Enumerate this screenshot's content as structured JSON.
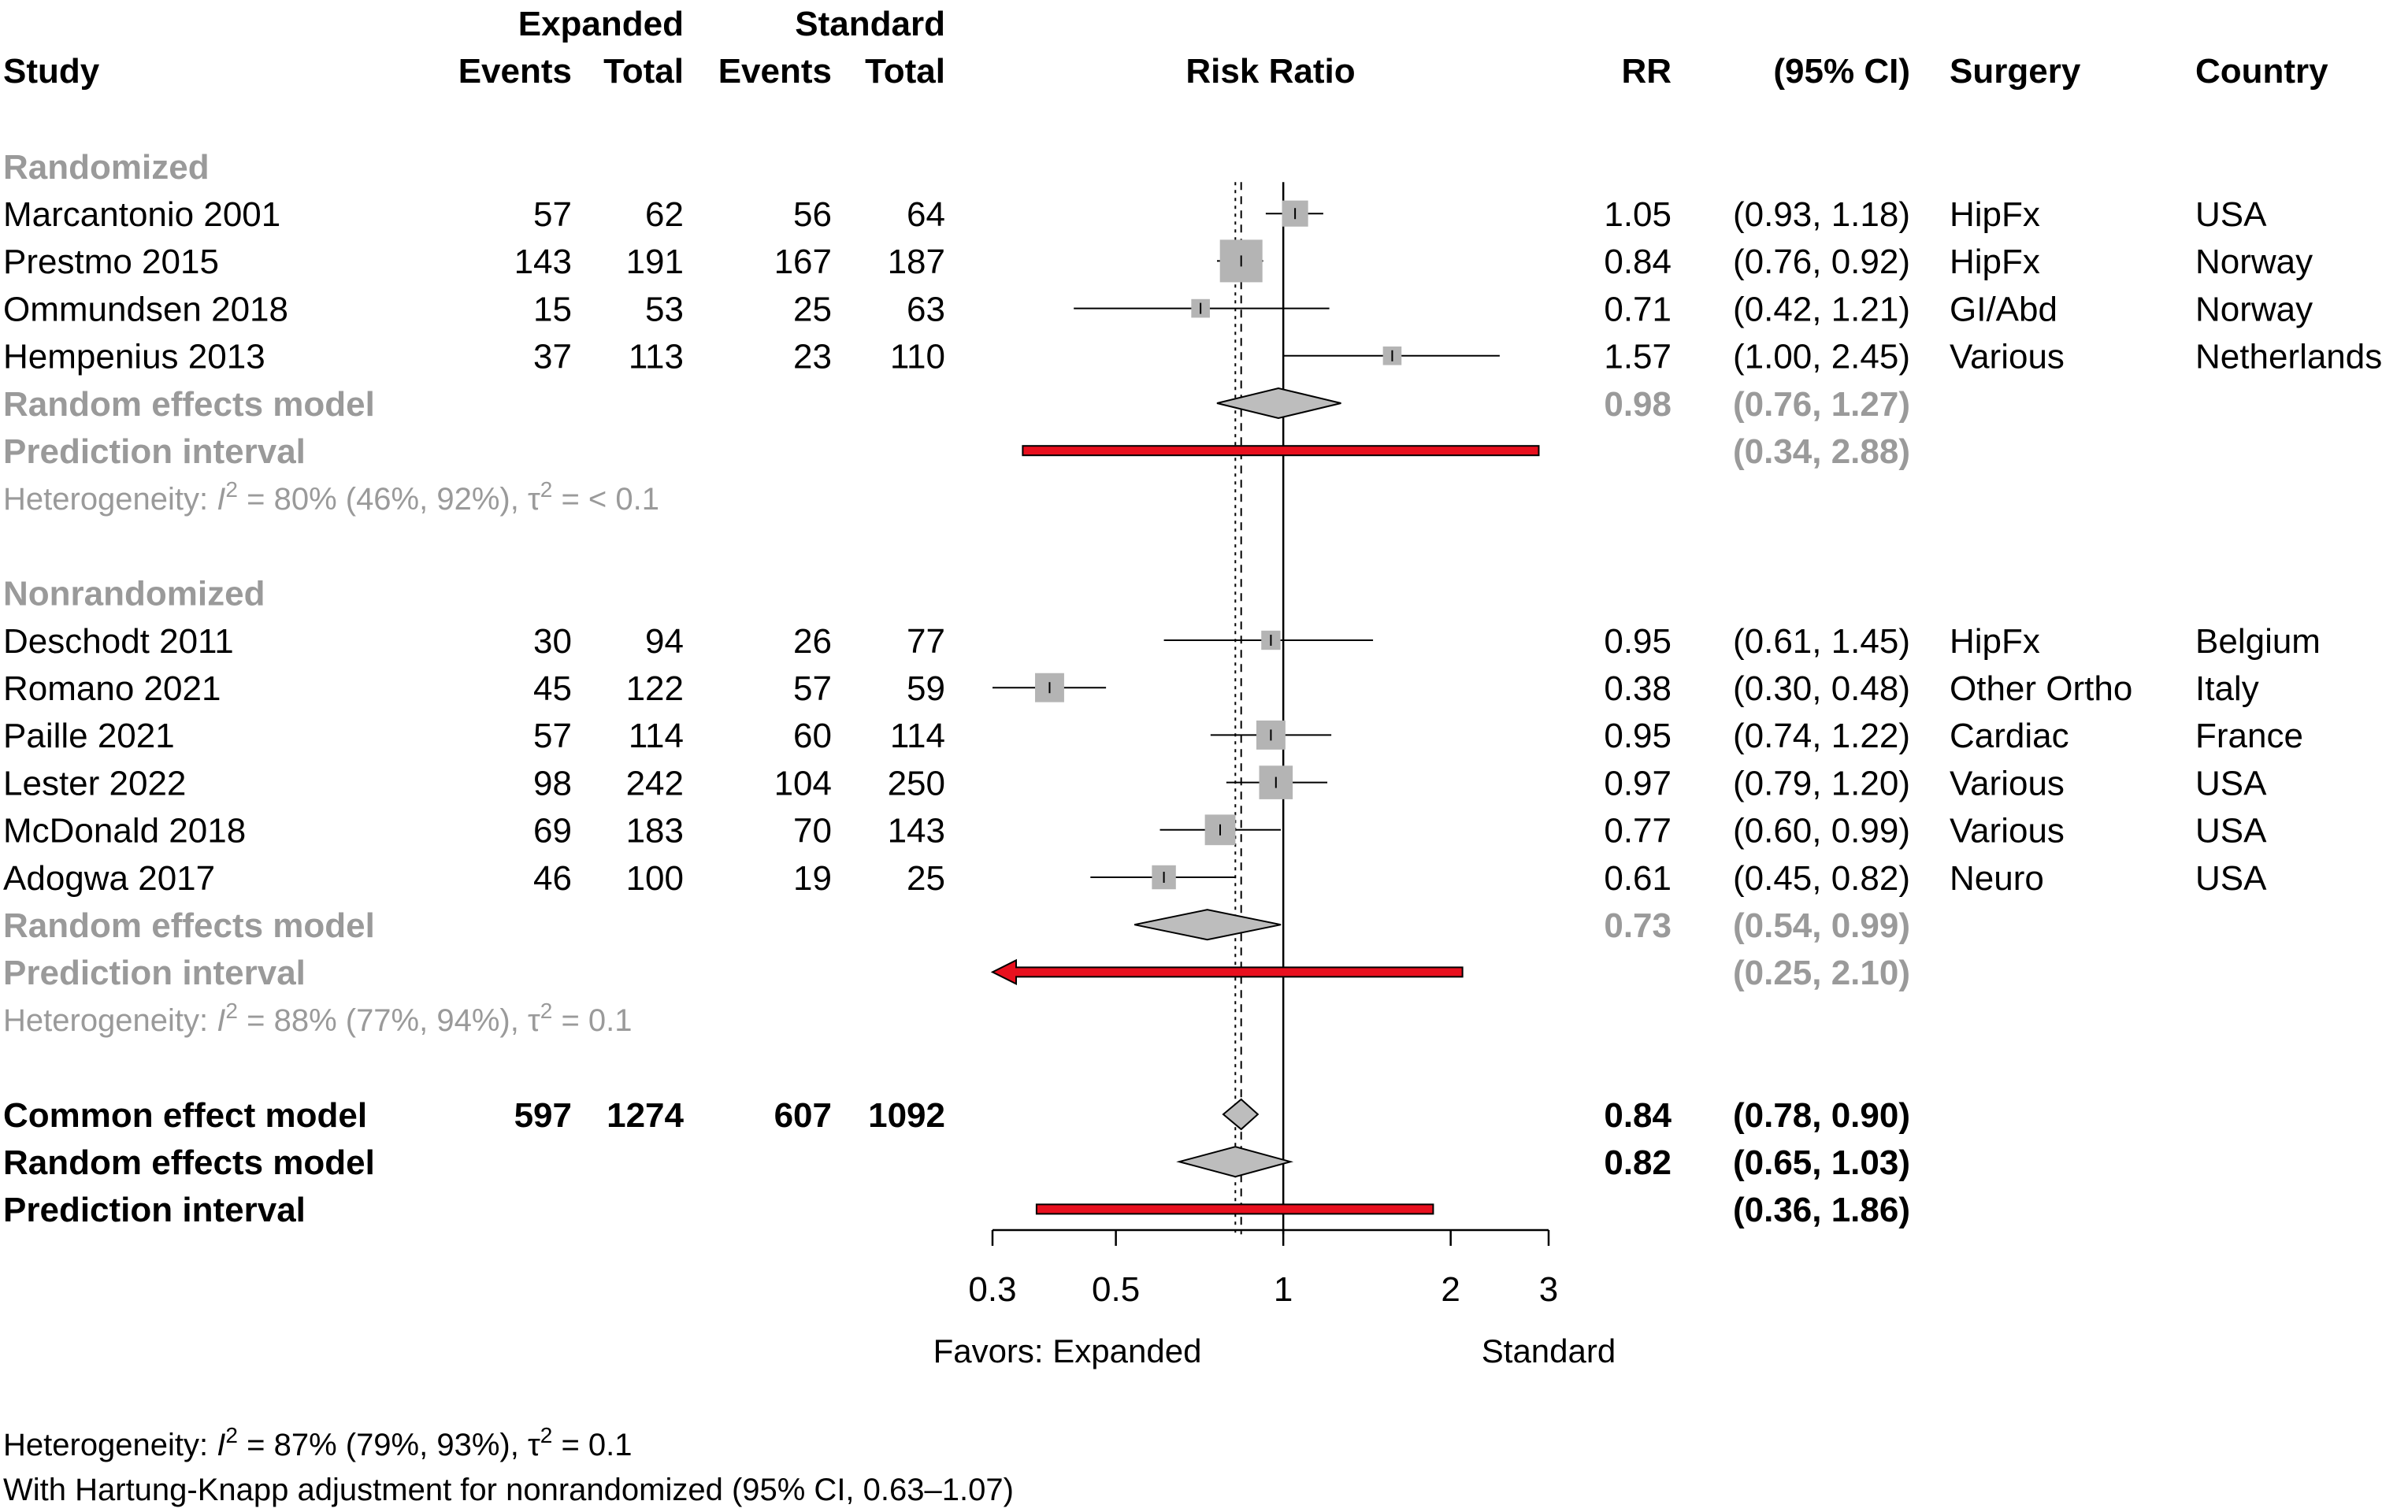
{
  "header": {
    "study": "Study",
    "expanded_group": "Expanded",
    "standard_group": "Standard",
    "events": "Events",
    "total": "Total",
    "risk_ratio": "Risk Ratio",
    "rr": "RR",
    "ci": "(95% CI)",
    "surgery": "Surgery",
    "country": "Country"
  },
  "chart_data": {
    "type": "forest",
    "xscale": "log",
    "xlim": [
      0.3,
      3
    ],
    "ticks": [
      0.3,
      0.5,
      1,
      2,
      3
    ],
    "tick_labels": [
      "0.3",
      "0.5",
      "1",
      "2",
      "3"
    ],
    "reference_line": 1,
    "common_effect_line": 0.84,
    "random_effect_line": 0.82,
    "favors_left": "Favors: Expanded",
    "favors_right": "Standard",
    "groups": [
      {
        "title": "Randomized",
        "studies": [
          {
            "study": "Marcantonio 2001",
            "e_events": "57",
            "e_total": "62",
            "s_events": "56",
            "s_total": "64",
            "rr": 1.05,
            "lo": 0.93,
            "hi": 1.18,
            "rr_text": "1.05",
            "ci_text": "(0.93, 1.18)",
            "surgery": "HipFx",
            "country": "USA",
            "weight": 0.45
          },
          {
            "study": "Prestmo 2015",
            "e_events": "143",
            "e_total": "191",
            "s_events": "167",
            "s_total": "187",
            "rr": 0.84,
            "lo": 0.76,
            "hi": 0.92,
            "rr_text": "0.84",
            "ci_text": "(0.76, 0.92)",
            "surgery": "HipFx",
            "country": "Norway",
            "weight": 1.0
          },
          {
            "study": "Ommundsen 2018",
            "e_events": "15",
            "e_total": "53",
            "s_events": "25",
            "s_total": "63",
            "rr": 0.71,
            "lo": 0.42,
            "hi": 1.21,
            "rr_text": "0.71",
            "ci_text": "(0.42, 1.21)",
            "surgery": "GI/Abd",
            "country": "Norway",
            "weight": 0.2
          },
          {
            "study": "Hempenius 2013",
            "e_events": "37",
            "e_total": "113",
            "s_events": "23",
            "s_total": "110",
            "rr": 1.57,
            "lo": 1.0,
            "hi": 2.45,
            "rr_text": "1.57",
            "ci_text": "(1.00, 2.45)",
            "surgery": "Various",
            "country": "Netherlands",
            "weight": 0.2
          }
        ],
        "random_effects": {
          "label": "Random effects model",
          "rr": 0.98,
          "lo": 0.76,
          "hi": 1.27,
          "rr_text": "0.98",
          "ci_text": "(0.76, 1.27)"
        },
        "prediction": {
          "label": "Prediction interval",
          "lo": 0.34,
          "hi": 2.88,
          "ci_text": "(0.34, 2.88)"
        },
        "heterogeneity": {
          "prefix": "Heterogeneity: ",
          "i2": "I",
          "sup": "2",
          "rest": " = 80% (46%, 92%), τ",
          "tau_sup": "2",
          "tail": " = < 0.1"
        }
      },
      {
        "title": "Nonrandomized",
        "studies": [
          {
            "study": "Deschodt 2011",
            "e_events": "30",
            "e_total": "94",
            "s_events": "26",
            "s_total": "77",
            "rr": 0.95,
            "lo": 0.61,
            "hi": 1.45,
            "rr_text": "0.95",
            "ci_text": "(0.61, 1.45)",
            "surgery": "HipFx",
            "country": "Belgium",
            "weight": 0.22
          },
          {
            "study": "Romano 2021",
            "e_events": "45",
            "e_total": "122",
            "s_events": "57",
            "s_total": "59",
            "rr": 0.38,
            "lo": 0.3,
            "hi": 0.48,
            "rr_text": "0.38",
            "ci_text": "(0.30, 0.48)",
            "surgery": "Other Ortho",
            "country": "Italy",
            "weight": 0.55
          },
          {
            "study": "Paille 2021",
            "e_events": "57",
            "e_total": "114",
            "s_events": "60",
            "s_total": "114",
            "rr": 0.95,
            "lo": 0.74,
            "hi": 1.22,
            "rr_text": "0.95",
            "ci_text": "(0.74, 1.22)",
            "surgery": "Cardiac",
            "country": "France",
            "weight": 0.55
          },
          {
            "study": "Lester 2022",
            "e_events": "98",
            "e_total": "242",
            "s_events": "104",
            "s_total": "250",
            "rr": 0.97,
            "lo": 0.79,
            "hi": 1.2,
            "rr_text": "0.97",
            "ci_text": "(0.79, 1.20)",
            "surgery": "Various",
            "country": "USA",
            "weight": 0.7
          },
          {
            "study": "McDonald 2018",
            "e_events": "69",
            "e_total": "183",
            "s_events": "70",
            "s_total": "143",
            "rr": 0.77,
            "lo": 0.6,
            "hi": 0.99,
            "rr_text": "0.77",
            "ci_text": "(0.60, 0.99)",
            "surgery": "Various",
            "country": "USA",
            "weight": 0.6
          },
          {
            "study": "Adogwa 2017",
            "e_events": "46",
            "e_total": "100",
            "s_events": "19",
            "s_total": "25",
            "rr": 0.61,
            "lo": 0.45,
            "hi": 0.82,
            "rr_text": "0.61",
            "ci_text": "(0.45, 0.82)",
            "surgery": "Neuro",
            "country": "USA",
            "weight": 0.38
          }
        ],
        "random_effects": {
          "label": "Random effects model",
          "rr": 0.73,
          "lo": 0.54,
          "hi": 0.99,
          "rr_text": "0.73",
          "ci_text": "(0.54, 0.99)"
        },
        "prediction": {
          "label": "Prediction interval",
          "lo": 0.25,
          "hi": 2.1,
          "ci_text": "(0.25, 2.10)"
        },
        "heterogeneity": {
          "prefix": "Heterogeneity: ",
          "i2": "I",
          "sup": "2",
          "rest": " = 88% (77%, 94%), τ",
          "tau_sup": "2",
          "tail": " = 0.1"
        }
      }
    ],
    "overall": {
      "common": {
        "label": "Common effect model",
        "e_events": "597",
        "e_total": "1274",
        "s_events": "607",
        "s_total": "1092",
        "rr": 0.84,
        "lo": 0.78,
        "hi": 0.9,
        "rr_text": "0.84",
        "ci_text": "(0.78, 0.90)"
      },
      "random": {
        "label": "Random effects model",
        "rr": 0.82,
        "lo": 0.65,
        "hi": 1.03,
        "rr_text": "0.82",
        "ci_text": "(0.65, 1.03)"
      },
      "prediction": {
        "label": "Prediction interval",
        "lo": 0.36,
        "hi": 1.86,
        "ci_text": "(0.36, 1.86)"
      }
    }
  },
  "footer": {
    "heterogeneity": {
      "prefix": "Heterogeneity: ",
      "i2": "I",
      "sup": "2",
      "rest": " = 87% (79%, 93%), τ",
      "tau_sup": "2",
      "tail": " = 0.1"
    },
    "note": "With Hartung-Knapp adjustment for nonrandomized (95% CI, 0.63–1.07)"
  },
  "colors": {
    "text": "#000000",
    "gray_text": "#9a9a9a",
    "square": "#b4b4b4",
    "diamond": "#bdbdbd",
    "prediction": "#e8101e"
  }
}
